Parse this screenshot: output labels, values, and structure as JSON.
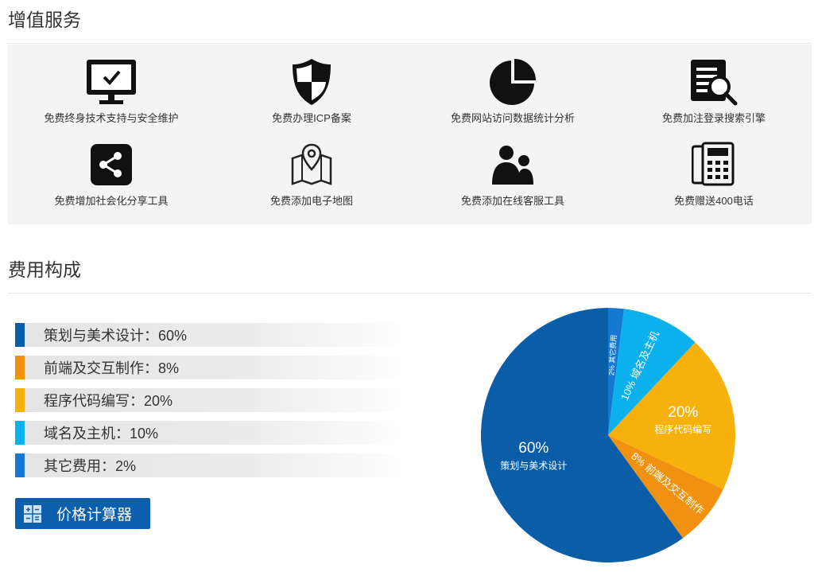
{
  "sections": {
    "services_title": "增值服务",
    "cost_title": "费用构成"
  },
  "services": [
    {
      "label": "免费终身技术支持与安全维护",
      "icon": "monitor-check-icon"
    },
    {
      "label": "免费办理ICP备案",
      "icon": "shield-icon"
    },
    {
      "label": "免费网站访问数据统计分析",
      "icon": "pie-chart-icon"
    },
    {
      "label": "免费加注登录搜索引擎",
      "icon": "document-search-icon"
    },
    {
      "label": "免费增加社会化分享工具",
      "icon": "share-icon"
    },
    {
      "label": "免费添加电子地图",
      "icon": "map-pin-icon"
    },
    {
      "label": "免费添加在线客服工具",
      "icon": "people-icon"
    },
    {
      "label": "免费赠送400电话",
      "icon": "phone-icon"
    }
  ],
  "cost_legend": [
    {
      "text": "策划与美术设计：60%",
      "color": "#0a5ea8"
    },
    {
      "text": "前端及交互制作：8%",
      "color": "#f0920f"
    },
    {
      "text": "程序代码编写：20%",
      "color": "#f6b10c"
    },
    {
      "text": "域名及主机：10%",
      "color": "#0bb1ec"
    },
    {
      "text": "其它费用：2%",
      "color": "#1578d3"
    }
  ],
  "calculator": {
    "label": "价格计算器",
    "icon": "calculator-icon"
  },
  "chart_data": {
    "type": "pie",
    "slices": [
      {
        "name": "其它费用",
        "value": 2,
        "color": "#1578d3",
        "pct_label": "2%"
      },
      {
        "name": "域名及主机",
        "value": 10,
        "color": "#0bb1ec",
        "pct_label": "10%"
      },
      {
        "name": "程序代码编写",
        "value": 20,
        "color": "#f6b10c",
        "pct_label": "20%"
      },
      {
        "name": "前端及交互制作",
        "value": 8,
        "color": "#f0920f",
        "pct_label": "8%"
      },
      {
        "name": "策划与美术设计",
        "value": 60,
        "color": "#0a5ea8",
        "pct_label": "60%"
      }
    ],
    "start_angle": "12 o'clock",
    "direction": "clockwise"
  }
}
